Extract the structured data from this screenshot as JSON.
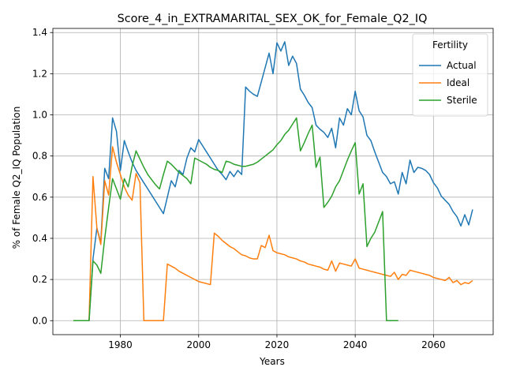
{
  "chart_data": {
    "type": "line",
    "title": "Score_4_in_EXTRAMARITAL_SEX_OK_for_Female_Q2_IQ",
    "xlabel": "Years",
    "ylabel": "% of Female Q2_IQ Population",
    "xlim": [
      1064.75,
      2075.25
    ],
    "ylim": [
      -0.068,
      1.42
    ],
    "xlim_years": [
      1064.75,
      2075.25
    ],
    "x_ticks": [
      1980,
      2000,
      2020,
      2040,
      2060
    ],
    "y_ticks": [
      0.0,
      0.2,
      0.4,
      0.6,
      0.8,
      1.0,
      1.2,
      1.4
    ],
    "grid": true,
    "legend": {
      "title": "Fertility",
      "placement": "top-right"
    },
    "series": [
      {
        "name": "Actual",
        "color": "#1f77b4",
        "points": [
          [
            1968,
            0.0
          ],
          [
            1969,
            0.0
          ],
          [
            1970,
            0.0
          ],
          [
            1971,
            0.0
          ],
          [
            1972,
            0.0
          ],
          [
            1973,
            0.3
          ],
          [
            1974,
            0.45
          ],
          [
            1975,
            0.38
          ],
          [
            1976,
            0.74
          ],
          [
            1977,
            0.69
          ],
          [
            1978,
            0.985
          ],
          [
            1979,
            0.92
          ],
          [
            1980,
            0.73
          ],
          [
            1981,
            0.875
          ],
          [
            1982,
            0.82
          ],
          [
            1983,
            0.77
          ],
          [
            1984,
            0.73
          ],
          [
            1985,
            0.7
          ],
          [
            1986,
            0.67
          ],
          [
            1987,
            0.64
          ],
          [
            1988,
            0.61
          ],
          [
            1989,
            0.58
          ],
          [
            1990,
            0.55
          ],
          [
            1991,
            0.52
          ],
          [
            1992,
            0.6
          ],
          [
            1993,
            0.68
          ],
          [
            1994,
            0.65
          ],
          [
            1995,
            0.73
          ],
          [
            1996,
            0.71
          ],
          [
            1997,
            0.79
          ],
          [
            1998,
            0.84
          ],
          [
            1999,
            0.82
          ],
          [
            2000,
            0.88
          ],
          [
            2001,
            0.85
          ],
          [
            2002,
            0.82
          ],
          [
            2003,
            0.79
          ],
          [
            2004,
            0.76
          ],
          [
            2005,
            0.73
          ],
          [
            2006,
            0.71
          ],
          [
            2007,
            0.685
          ],
          [
            2008,
            0.725
          ],
          [
            2009,
            0.7
          ],
          [
            2010,
            0.73
          ],
          [
            2011,
            0.71
          ],
          [
            2012,
            1.135
          ],
          [
            2013,
            1.115
          ],
          [
            2014,
            1.1
          ],
          [
            2015,
            1.09
          ],
          [
            2016,
            1.16
          ],
          [
            2017,
            1.23
          ],
          [
            2018,
            1.3
          ],
          [
            2019,
            1.2
          ],
          [
            2020,
            1.35
          ],
          [
            2021,
            1.31
          ],
          [
            2022,
            1.355
          ],
          [
            2023,
            1.24
          ],
          [
            2024,
            1.285
          ],
          [
            2025,
            1.25
          ],
          [
            2026,
            1.125
          ],
          [
            2027,
            1.095
          ],
          [
            2028,
            1.06
          ],
          [
            2029,
            1.035
          ],
          [
            2030,
            0.95
          ],
          [
            2031,
            0.93
          ],
          [
            2032,
            0.915
          ],
          [
            2033,
            0.89
          ],
          [
            2034,
            0.935
          ],
          [
            2035,
            0.84
          ],
          [
            2036,
            0.985
          ],
          [
            2037,
            0.95
          ],
          [
            2038,
            1.03
          ],
          [
            2039,
            1.0
          ],
          [
            2040,
            1.115
          ],
          [
            2041,
            1.02
          ],
          [
            2042,
            0.99
          ],
          [
            2043,
            0.9
          ],
          [
            2044,
            0.875
          ],
          [
            2045,
            0.82
          ],
          [
            2046,
            0.77
          ],
          [
            2047,
            0.72
          ],
          [
            2048,
            0.7
          ],
          [
            2049,
            0.665
          ],
          [
            2050,
            0.675
          ],
          [
            2051,
            0.615
          ],
          [
            2052,
            0.72
          ],
          [
            2053,
            0.665
          ],
          [
            2054,
            0.78
          ],
          [
            2055,
            0.72
          ],
          [
            2056,
            0.745
          ],
          [
            2057,
            0.74
          ],
          [
            2058,
            0.73
          ],
          [
            2059,
            0.71
          ],
          [
            2060,
            0.67
          ],
          [
            2061,
            0.645
          ],
          [
            2062,
            0.605
          ],
          [
            2063,
            0.585
          ],
          [
            2064,
            0.565
          ],
          [
            2065,
            0.53
          ],
          [
            2066,
            0.505
          ],
          [
            2067,
            0.46
          ],
          [
            2068,
            0.515
          ],
          [
            2069,
            0.465
          ],
          [
            2070,
            0.54
          ]
        ]
      },
      {
        "name": "Ideal",
        "color": "#ff7f0e",
        "points": [
          [
            1968,
            0.0
          ],
          [
            1969,
            0.0
          ],
          [
            1970,
            0.0
          ],
          [
            1971,
            0.0
          ],
          [
            1972,
            0.0
          ],
          [
            1973,
            0.7
          ],
          [
            1974,
            0.45
          ],
          [
            1975,
            0.37
          ],
          [
            1976,
            0.68
          ],
          [
            1977,
            0.61
          ],
          [
            1978,
            0.845
          ],
          [
            1979,
            0.77
          ],
          [
            1980,
            0.71
          ],
          [
            1981,
            0.65
          ],
          [
            1982,
            0.61
          ],
          [
            1983,
            0.585
          ],
          [
            1984,
            0.715
          ],
          [
            1985,
            0.67
          ],
          [
            1986,
            0.0
          ],
          [
            1987,
            0.0
          ],
          [
            1988,
            0.0
          ],
          [
            1989,
            0.0
          ],
          [
            1990,
            0.0
          ],
          [
            1991,
            0.0
          ],
          [
            1992,
            0.275
          ],
          [
            1993,
            0.265
          ],
          [
            1994,
            0.255
          ],
          [
            1995,
            0.24
          ],
          [
            1996,
            0.23
          ],
          [
            1997,
            0.22
          ],
          [
            1998,
            0.21
          ],
          [
            1999,
            0.2
          ],
          [
            2000,
            0.19
          ],
          [
            2001,
            0.185
          ],
          [
            2002,
            0.18
          ],
          [
            2003,
            0.175
          ],
          [
            2004,
            0.425
          ],
          [
            2005,
            0.41
          ],
          [
            2006,
            0.39
          ],
          [
            2007,
            0.375
          ],
          [
            2008,
            0.36
          ],
          [
            2009,
            0.35
          ],
          [
            2010,
            0.335
          ],
          [
            2011,
            0.32
          ],
          [
            2012,
            0.315
          ],
          [
            2013,
            0.305
          ],
          [
            2014,
            0.3
          ],
          [
            2015,
            0.3
          ],
          [
            2016,
            0.365
          ],
          [
            2017,
            0.355
          ],
          [
            2018,
            0.415
          ],
          [
            2019,
            0.34
          ],
          [
            2020,
            0.33
          ],
          [
            2021,
            0.325
          ],
          [
            2022,
            0.32
          ],
          [
            2023,
            0.31
          ],
          [
            2024,
            0.305
          ],
          [
            2025,
            0.3
          ],
          [
            2026,
            0.29
          ],
          [
            2027,
            0.285
          ],
          [
            2028,
            0.275
          ],
          [
            2029,
            0.27
          ],
          [
            2030,
            0.265
          ],
          [
            2031,
            0.26
          ],
          [
            2032,
            0.25
          ],
          [
            2033,
            0.245
          ],
          [
            2034,
            0.29
          ],
          [
            2035,
            0.24
          ],
          [
            2036,
            0.28
          ],
          [
            2037,
            0.275
          ],
          [
            2038,
            0.27
          ],
          [
            2039,
            0.265
          ],
          [
            2040,
            0.3
          ],
          [
            2041,
            0.255
          ],
          [
            2042,
            0.25
          ],
          [
            2043,
            0.245
          ],
          [
            2044,
            0.24
          ],
          [
            2045,
            0.235
          ],
          [
            2046,
            0.23
          ],
          [
            2047,
            0.225
          ],
          [
            2048,
            0.22
          ],
          [
            2049,
            0.215
          ],
          [
            2050,
            0.235
          ],
          [
            2051,
            0.2
          ],
          [
            2052,
            0.225
          ],
          [
            2053,
            0.22
          ],
          [
            2054,
            0.245
          ],
          [
            2055,
            0.24
          ],
          [
            2056,
            0.235
          ],
          [
            2057,
            0.23
          ],
          [
            2058,
            0.225
          ],
          [
            2059,
            0.22
          ],
          [
            2060,
            0.21
          ],
          [
            2061,
            0.205
          ],
          [
            2062,
            0.2
          ],
          [
            2063,
            0.195
          ],
          [
            2064,
            0.21
          ],
          [
            2065,
            0.185
          ],
          [
            2066,
            0.195
          ],
          [
            2067,
            0.175
          ],
          [
            2068,
            0.185
          ],
          [
            2069,
            0.18
          ],
          [
            2070,
            0.195
          ]
        ]
      },
      {
        "name": "Sterile",
        "color": "#2ca02c",
        "points": [
          [
            1968,
            0.0
          ],
          [
            1969,
            0.0
          ],
          [
            1970,
            0.0
          ],
          [
            1971,
            0.0
          ],
          [
            1972,
            0.0
          ],
          [
            1973,
            0.29
          ],
          [
            1974,
            0.27
          ],
          [
            1975,
            0.23
          ],
          [
            1976,
            0.4
          ],
          [
            1977,
            0.55
          ],
          [
            1978,
            0.69
          ],
          [
            1979,
            0.64
          ],
          [
            1980,
            0.59
          ],
          [
            1981,
            0.69
          ],
          [
            1982,
            0.65
          ],
          [
            1983,
            0.75
          ],
          [
            1984,
            0.825
          ],
          [
            1985,
            0.785
          ],
          [
            1986,
            0.745
          ],
          [
            1987,
            0.71
          ],
          [
            1988,
            0.685
          ],
          [
            1989,
            0.66
          ],
          [
            1990,
            0.64
          ],
          [
            1991,
            0.71
          ],
          [
            1992,
            0.775
          ],
          [
            1993,
            0.76
          ],
          [
            1994,
            0.74
          ],
          [
            1995,
            0.72
          ],
          [
            1996,
            0.705
          ],
          [
            1997,
            0.69
          ],
          [
            1998,
            0.665
          ],
          [
            1999,
            0.79
          ],
          [
            2000,
            0.78
          ],
          [
            2001,
            0.77
          ],
          [
            2002,
            0.76
          ],
          [
            2003,
            0.745
          ],
          [
            2004,
            0.735
          ],
          [
            2005,
            0.73
          ],
          [
            2006,
            0.72
          ],
          [
            2007,
            0.775
          ],
          [
            2008,
            0.77
          ],
          [
            2009,
            0.76
          ],
          [
            2010,
            0.755
          ],
          [
            2011,
            0.75
          ],
          [
            2012,
            0.75
          ],
          [
            2013,
            0.755
          ],
          [
            2014,
            0.76
          ],
          [
            2015,
            0.77
          ],
          [
            2016,
            0.785
          ],
          [
            2017,
            0.8
          ],
          [
            2018,
            0.815
          ],
          [
            2019,
            0.83
          ],
          [
            2020,
            0.855
          ],
          [
            2021,
            0.875
          ],
          [
            2022,
            0.905
          ],
          [
            2023,
            0.925
          ],
          [
            2024,
            0.955
          ],
          [
            2025,
            0.985
          ],
          [
            2026,
            0.825
          ],
          [
            2027,
            0.865
          ],
          [
            2028,
            0.91
          ],
          [
            2029,
            0.95
          ],
          [
            2030,
            0.745
          ],
          [
            2031,
            0.795
          ],
          [
            2032,
            0.55
          ],
          [
            2033,
            0.575
          ],
          [
            2034,
            0.605
          ],
          [
            2035,
            0.65
          ],
          [
            2036,
            0.68
          ],
          [
            2037,
            0.73
          ],
          [
            2038,
            0.78
          ],
          [
            2039,
            0.825
          ],
          [
            2040,
            0.865
          ],
          [
            2041,
            0.615
          ],
          [
            2042,
            0.665
          ],
          [
            2043,
            0.36
          ],
          [
            2044,
            0.4
          ],
          [
            2045,
            0.43
          ],
          [
            2046,
            0.48
          ],
          [
            2047,
            0.53
          ],
          [
            2048,
            0.0
          ],
          [
            2049,
            0.0
          ],
          [
            2050,
            0.0
          ],
          [
            2051,
            0.0
          ]
        ]
      }
    ]
  }
}
